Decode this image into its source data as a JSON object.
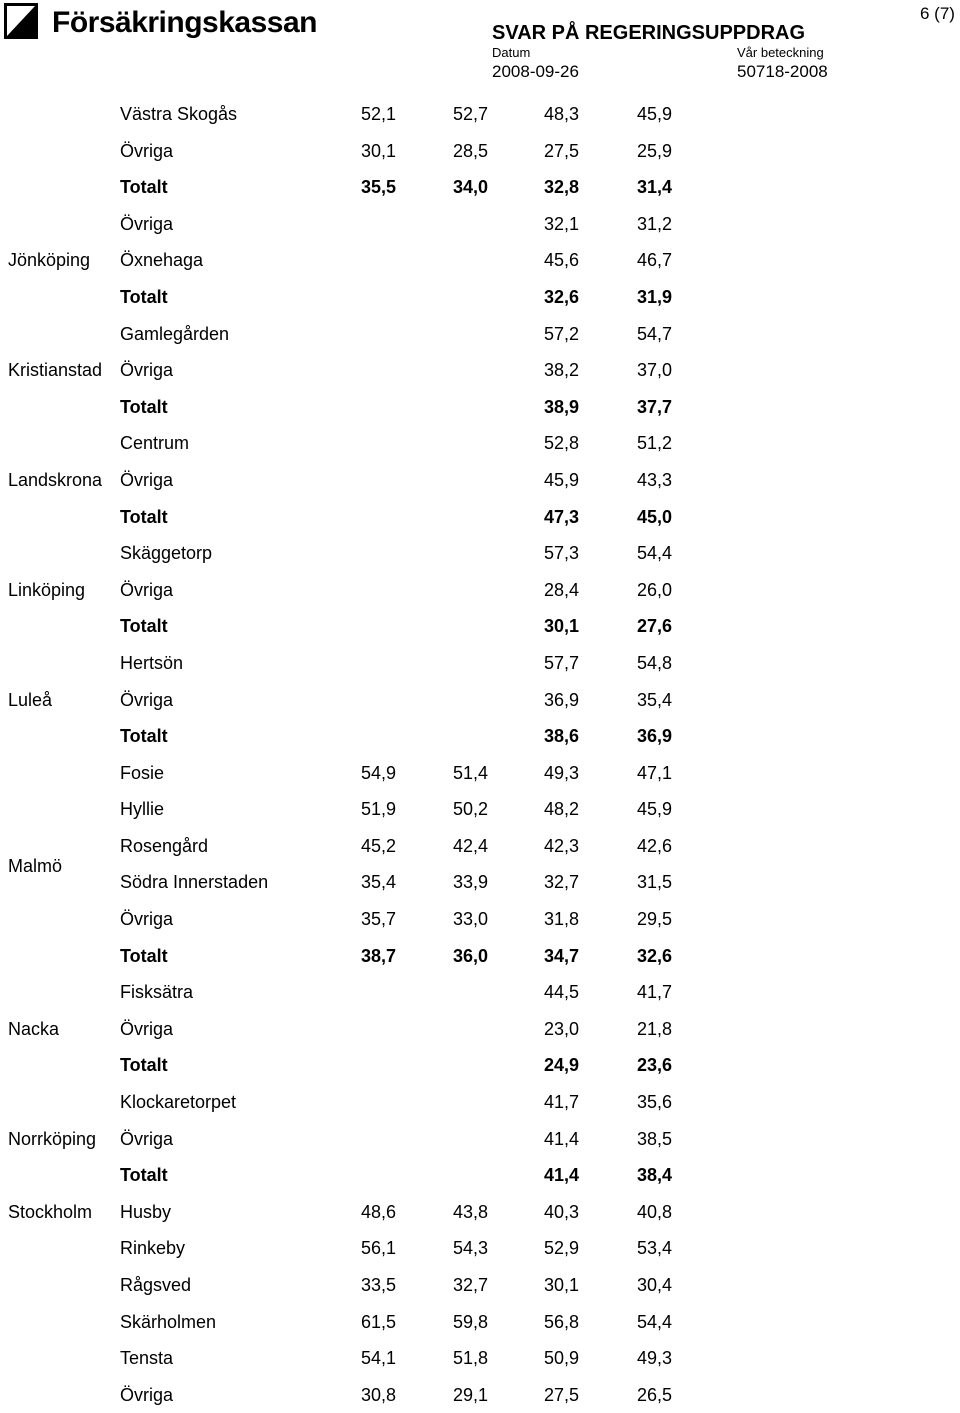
{
  "header": {
    "logo_text": "Försäkringskassan",
    "title": "SVAR PÅ REGERINGSUPPDRAG",
    "datum_label": "Datum",
    "datum_value": "2008-09-26",
    "ref_label": "Vår beteckning",
    "ref_value": "50718-2008",
    "page_number": "6 (7)"
  },
  "rows": [
    {
      "city": "",
      "area": "Västra Skogås",
      "v1": "52,1",
      "v2": "52,7",
      "v3": "48,3",
      "v4": "45,9",
      "total": false
    },
    {
      "city": "",
      "area": "Övriga",
      "v1": "30,1",
      "v2": "28,5",
      "v3": "27,5",
      "v4": "25,9",
      "total": false
    },
    {
      "city": "",
      "area": "Totalt",
      "v1": "35,5",
      "v2": "34,0",
      "v3": "32,8",
      "v4": "31,4",
      "total": true
    },
    {
      "city": "",
      "area": "Övriga",
      "v1": "",
      "v2": "",
      "v3": "32,1",
      "v4": "31,2",
      "total": false
    },
    {
      "city": "Jönköping",
      "area": "Öxnehaga",
      "v1": "",
      "v2": "",
      "v3": "45,6",
      "v4": "46,7",
      "total": false
    },
    {
      "city": "",
      "area": "Totalt",
      "v1": "",
      "v2": "",
      "v3": "32,6",
      "v4": "31,9",
      "total": true
    },
    {
      "city": "",
      "area": "Gamlegården",
      "v1": "",
      "v2": "",
      "v3": "57,2",
      "v4": "54,7",
      "total": false
    },
    {
      "city": "Kristianstad",
      "area": "Övriga",
      "v1": "",
      "v2": "",
      "v3": "38,2",
      "v4": "37,0",
      "total": false
    },
    {
      "city": "",
      "area": "Totalt",
      "v1": "",
      "v2": "",
      "v3": "38,9",
      "v4": "37,7",
      "total": true
    },
    {
      "city": "",
      "area": "Centrum",
      "v1": "",
      "v2": "",
      "v3": "52,8",
      "v4": "51,2",
      "total": false
    },
    {
      "city": "Landskrona",
      "area": "Övriga",
      "v1": "",
      "v2": "",
      "v3": "45,9",
      "v4": "43,3",
      "total": false
    },
    {
      "city": "",
      "area": "Totalt",
      "v1": "",
      "v2": "",
      "v3": "47,3",
      "v4": "45,0",
      "total": true
    },
    {
      "city": "",
      "area": "Skäggetorp",
      "v1": "",
      "v2": "",
      "v3": "57,3",
      "v4": "54,4",
      "total": false
    },
    {
      "city": "Linköping",
      "area": "Övriga",
      "v1": "",
      "v2": "",
      "v3": "28,4",
      "v4": "26,0",
      "total": false
    },
    {
      "city": "",
      "area": "Totalt",
      "v1": "",
      "v2": "",
      "v3": "30,1",
      "v4": "27,6",
      "total": true
    },
    {
      "city": "",
      "area": "Hertsön",
      "v1": "",
      "v2": "",
      "v3": "57,7",
      "v4": "54,8",
      "total": false
    },
    {
      "city": "Luleå",
      "area": "Övriga",
      "v1": "",
      "v2": "",
      "v3": "36,9",
      "v4": "35,4",
      "total": false
    },
    {
      "city": "",
      "area": "Totalt",
      "v1": "",
      "v2": "",
      "v3": "38,6",
      "v4": "36,9",
      "total": true
    },
    {
      "city": "",
      "area": "Fosie",
      "v1": "54,9",
      "v2": "51,4",
      "v3": "49,3",
      "v4": "47,1",
      "total": false
    },
    {
      "city": "",
      "area": "Hyllie",
      "v1": "51,9",
      "v2": "50,2",
      "v3": "48,2",
      "v4": "45,9",
      "total": false
    },
    {
      "city": "",
      "area": "Rosengård",
      "v1": "45,2",
      "v2": "42,4",
      "v3": "42,3",
      "v4": "42,6",
      "total": false
    },
    {
      "city": "",
      "area": "Södra Innerstaden",
      "v1": "35,4",
      "v2": "33,9",
      "v3": "32,7",
      "v4": "31,5",
      "total": false
    },
    {
      "city": "",
      "area": "Övriga",
      "v1": "35,7",
      "v2": "33,0",
      "v3": "31,8",
      "v4": "29,5",
      "total": false
    },
    {
      "city": "",
      "area": "Totalt",
      "v1": "38,7",
      "v2": "36,0",
      "v3": "34,7",
      "v4": "32,6",
      "total": true
    },
    {
      "city": "",
      "area": "Fisksätra",
      "v1": "",
      "v2": "",
      "v3": "44,5",
      "v4": "41,7",
      "total": false
    },
    {
      "city": "Nacka",
      "area": "Övriga",
      "v1": "",
      "v2": "",
      "v3": "23,0",
      "v4": "21,8",
      "total": false
    },
    {
      "city": "",
      "area": "Totalt",
      "v1": "",
      "v2": "",
      "v3": "24,9",
      "v4": "23,6",
      "total": true
    },
    {
      "city": "",
      "area": "Klockaretorpet",
      "v1": "",
      "v2": "",
      "v3": "41,7",
      "v4": "35,6",
      "total": false
    },
    {
      "city": "Norrköping",
      "area": "Övriga",
      "v1": "",
      "v2": "",
      "v3": "41,4",
      "v4": "38,5",
      "total": false
    },
    {
      "city": "",
      "area": "Totalt",
      "v1": "",
      "v2": "",
      "v3": "41,4",
      "v4": "38,4",
      "total": true
    },
    {
      "city": "Stockholm",
      "area": "Husby",
      "v1": "48,6",
      "v2": "43,8",
      "v3": "40,3",
      "v4": "40,8",
      "total": false
    },
    {
      "city": "",
      "area": "Rinkeby",
      "v1": "56,1",
      "v2": "54,3",
      "v3": "52,9",
      "v4": "53,4",
      "total": false
    },
    {
      "city": "",
      "area": "Rågsved",
      "v1": "33,5",
      "v2": "32,7",
      "v3": "30,1",
      "v4": "30,4",
      "total": false
    },
    {
      "city": "",
      "area": "Skärholmen",
      "v1": "61,5",
      "v2": "59,8",
      "v3": "56,8",
      "v4": "54,4",
      "total": false
    },
    {
      "city": "",
      "area": "Tensta",
      "v1": "54,1",
      "v2": "51,8",
      "v3": "50,9",
      "v4": "49,3",
      "total": false
    },
    {
      "city": "",
      "area": "Övriga",
      "v1": "30,8",
      "v2": "29,1",
      "v3": "27,5",
      "v4": "26,5",
      "total": false
    }
  ],
  "malmo_label": "Malmö"
}
